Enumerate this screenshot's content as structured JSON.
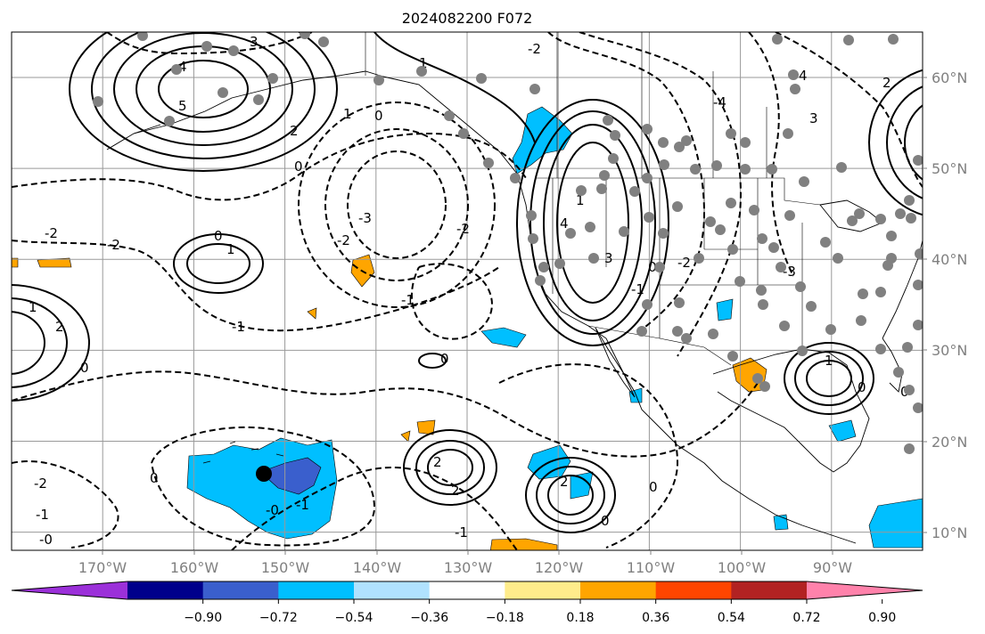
{
  "title": "2024082200 F072",
  "map": {
    "lon_range": [
      -180,
      -80
    ],
    "lat_range": [
      8,
      65
    ],
    "lon_ticks": [
      "170°W",
      "160°W",
      "150°W",
      "140°W",
      "130°W",
      "120°W",
      "110°W",
      "100°W",
      "90°W"
    ],
    "lat_ticks": [
      "60°N",
      "50°N",
      "40°N",
      "30°N",
      "20°N",
      "10°N"
    ],
    "gridlines": true
  },
  "colorbar": {
    "colors": [
      "#9b30d9",
      "#00008b",
      "#3a5fcd",
      "#00bfff",
      "#b0e2ff",
      "#ffffff",
      "#ffec8b",
      "#ffa500",
      "#ff4500",
      "#b22222",
      "#ff82ab"
    ],
    "tick_labels": [
      "−0.90",
      "−0.72",
      "−0.54",
      "−0.36",
      "−0.18",
      "0.18",
      "0.36",
      "0.54",
      "0.72",
      "0.90"
    ],
    "extend": "both"
  },
  "contour_labels": [
    "-1",
    "2",
    "0",
    "-0",
    "1",
    "-2",
    "3",
    "-3",
    "4",
    "-4",
    "5"
  ],
  "marker": {
    "type": "black-dot"
  }
}
